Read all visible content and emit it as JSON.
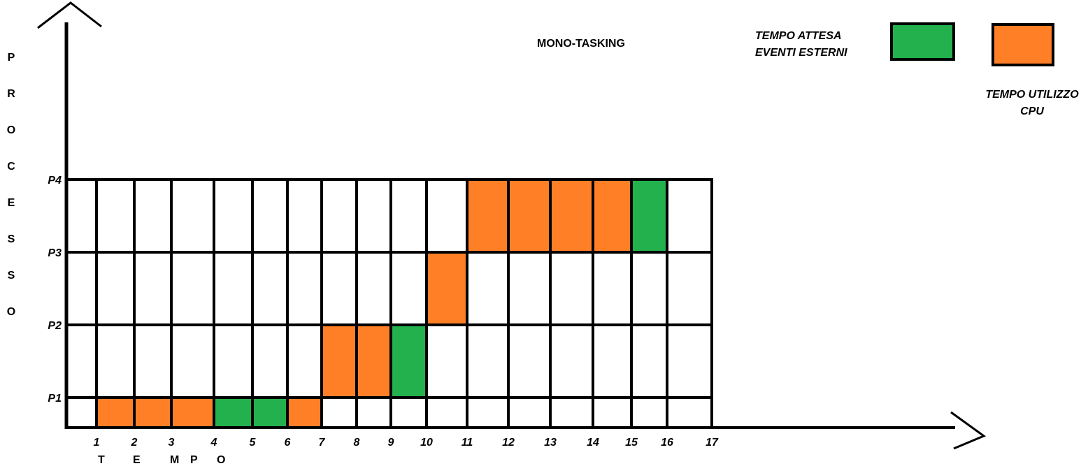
{
  "chart_data": {
    "type": "table",
    "title": "MONO-TASKING",
    "xlabel": "T E M P O",
    "ylabel": "PROCESSO",
    "x_ticks": [
      "1",
      "2",
      "3",
      "4",
      "5",
      "6",
      "7",
      "8",
      "9",
      "10",
      "11",
      "12",
      "13",
      "14",
      "15",
      "16",
      "17"
    ],
    "y_ticks": [
      "P1",
      "P2",
      "P3",
      "P4"
    ],
    "legend": [
      {
        "label_lines": [
          "TEMPO ATTESA",
          "EVENTI ESTERNI"
        ],
        "color": "#22b14c"
      },
      {
        "label_lines": [
          "TEMPO UTILIZZO",
          "CPU"
        ],
        "color": "#ff7f27"
      }
    ],
    "colors": {
      "wait": "#22b14c",
      "cpu": "#ff7f27",
      "grid": "#000000"
    },
    "cells": [
      {
        "row": "P1",
        "x_start": 1,
        "x_end": 2,
        "state": "cpu"
      },
      {
        "row": "P1",
        "x_start": 2,
        "x_end": 3,
        "state": "cpu"
      },
      {
        "row": "P1",
        "x_start": 3,
        "x_end": 4,
        "state": "cpu"
      },
      {
        "row": "P1",
        "x_start": 4,
        "x_end": 5,
        "state": "wait"
      },
      {
        "row": "P1",
        "x_start": 5,
        "x_end": 6,
        "state": "wait"
      },
      {
        "row": "P1",
        "x_start": 6,
        "x_end": 7,
        "state": "cpu"
      },
      {
        "row": "P2",
        "x_start": 7,
        "x_end": 8,
        "state": "cpu"
      },
      {
        "row": "P2",
        "x_start": 8,
        "x_end": 9,
        "state": "cpu"
      },
      {
        "row": "P2",
        "x_start": 9,
        "x_end": 10,
        "state": "wait"
      },
      {
        "row": "P3",
        "x_start": 10,
        "x_end": 11,
        "state": "cpu"
      },
      {
        "row": "P4",
        "x_start": 11,
        "x_end": 12,
        "state": "cpu"
      },
      {
        "row": "P4",
        "x_start": 12,
        "x_end": 13,
        "state": "cpu"
      },
      {
        "row": "P4",
        "x_start": 13,
        "x_end": 14,
        "state": "cpu"
      },
      {
        "row": "P4",
        "x_start": 14,
        "x_end": 15,
        "state": "cpu"
      },
      {
        "row": "P4",
        "x_start": 15,
        "x_end": 16,
        "state": "wait"
      }
    ]
  }
}
